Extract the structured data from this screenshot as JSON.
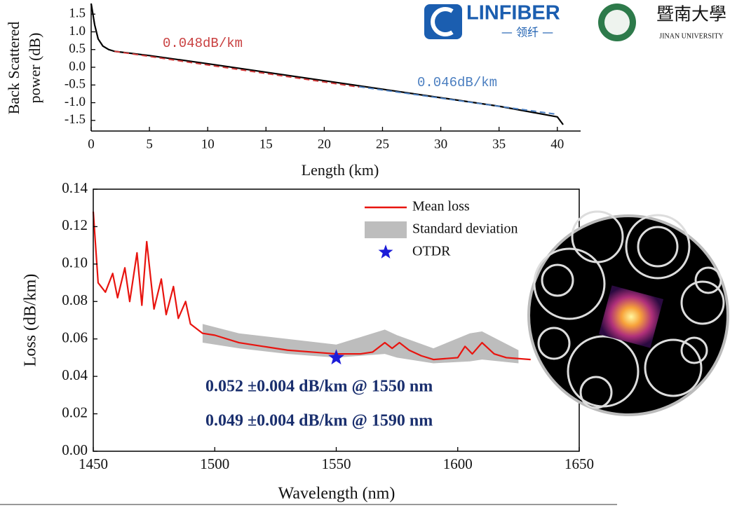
{
  "chart_data": [
    {
      "type": "line",
      "x_label": "Length (km)",
      "y_label": [
        "Back Scattered",
        "power (dB)"
      ],
      "xlim": [
        0,
        42
      ],
      "ylim": [
        -1.8,
        1.8
      ],
      "box": false,
      "xticks": [
        0,
        5,
        10,
        15,
        20,
        25,
        30,
        35,
        40
      ],
      "yticks": [
        {
          "value": 1.5,
          "label": "1.5"
        },
        {
          "value": 1,
          "label": "1.0"
        },
        {
          "value": 0.5,
          "label": "0.5"
        },
        {
          "value": 0,
          "label": "0.0"
        },
        {
          "value": -0.5,
          "label": "-0.5"
        },
        {
          "value": -1,
          "label": "-1.0"
        },
        {
          "value": -1.5,
          "label": "-1.5"
        }
      ],
      "series": [
        {
          "color": "#000000",
          "x": [
            0,
            0.3,
            0.6,
            1,
            1.5,
            2,
            5,
            10,
            15,
            20,
            25,
            30,
            35,
            40,
            40.5
          ],
          "values": [
            1.8,
            1.2,
            0.8,
            0.6,
            0.5,
            0.45,
            0.33,
            0.1,
            -0.14,
            -0.38,
            -0.62,
            -0.86,
            -1.1,
            -1.4,
            -1.62
          ]
        },
        {
          "color": "#d03a3a",
          "dash": true,
          "x": [
            2,
            23
          ],
          "values": [
            0.45,
            -0.56
          ]
        },
        {
          "color": "#4a7ec0",
          "dash": true,
          "x": [
            23,
            40
          ],
          "values": [
            -0.55,
            -1.33
          ]
        }
      ],
      "annotations": [
        {
          "text": "0.048dB/km",
          "color": "#c94040"
        },
        {
          "text": "0.046dB/km",
          "color": "#4a7ec0"
        }
      ]
    },
    {
      "type": "line",
      "x_label": "Wavelength (nm)",
      "y_label": [
        "Loss (dB/km)"
      ],
      "xlim": [
        1450,
        1650
      ],
      "ylim": [
        0,
        0.14
      ],
      "box": true,
      "xticks": [
        1450,
        1500,
        1550,
        1600,
        1650
      ],
      "yticks": [
        {
          "value": 0,
          "label": "0.00"
        },
        {
          "value": 0.02,
          "label": "0.02"
        },
        {
          "value": 0.04,
          "label": "0.04"
        },
        {
          "value": 0.06,
          "label": "0.06"
        },
        {
          "value": 0.08,
          "label": "0.08"
        },
        {
          "value": 0.1,
          "label": "0.10"
        },
        {
          "value": 0.12,
          "label": "0.12"
        },
        {
          "value": 0.14,
          "label": "0.14"
        }
      ],
      "series": [
        {
          "name": "Standard deviation",
          "color": "#bdbdbd",
          "x": [
            1495,
            1510,
            1530,
            1550,
            1570,
            1575,
            1590,
            1605,
            1610,
            1625
          ],
          "upper": [
            0.068,
            0.063,
            0.06,
            0.057,
            0.065,
            0.062,
            0.055,
            0.063,
            0.064,
            0.054
          ],
          "lower": [
            0.058,
            0.055,
            0.052,
            0.05,
            0.052,
            0.05,
            0.047,
            0.048,
            0.049,
            0.047
          ]
        },
        {
          "name": "Mean loss",
          "color": "#e8140f",
          "x": [
            1450,
            1452,
            1455,
            1458,
            1460,
            1463,
            1465,
            1468,
            1470,
            1472,
            1475,
            1478,
            1480,
            1483,
            1485,
            1488,
            1490,
            1495,
            1500,
            1510,
            1520,
            1530,
            1540,
            1550,
            1560,
            1565,
            1570,
            1573,
            1576,
            1580,
            1585,
            1590,
            1600,
            1603,
            1606,
            1610,
            1615,
            1620,
            1630
          ],
          "values": [
            0.128,
            0.09,
            0.085,
            0.095,
            0.082,
            0.098,
            0.08,
            0.106,
            0.078,
            0.112,
            0.076,
            0.092,
            0.073,
            0.088,
            0.071,
            0.08,
            0.068,
            0.063,
            0.062,
            0.058,
            0.056,
            0.054,
            0.053,
            0.052,
            0.052,
            0.053,
            0.058,
            0.055,
            0.058,
            0.054,
            0.051,
            0.049,
            0.05,
            0.056,
            0.052,
            0.058,
            0.052,
            0.05,
            0.049
          ]
        },
        {
          "name": "OTDR",
          "color": "#1c1cd8",
          "marker": "star",
          "x": [
            1550
          ],
          "values": [
            0.05
          ]
        }
      ],
      "annotations": [
        {
          "text": "0.052 ±0.004 dB/km @ 1550 nm",
          "color": "#1a2f6e"
        },
        {
          "text": "0.049 ±0.004 dB/km @ 1590 nm",
          "color": "#1a2f6e"
        }
      ]
    }
  ],
  "logos": {
    "company": "LINFIBER",
    "company_cn": "— 领纤 —",
    "university_cn": "暨南大學",
    "university": "JINAN UNIVERSITY"
  }
}
